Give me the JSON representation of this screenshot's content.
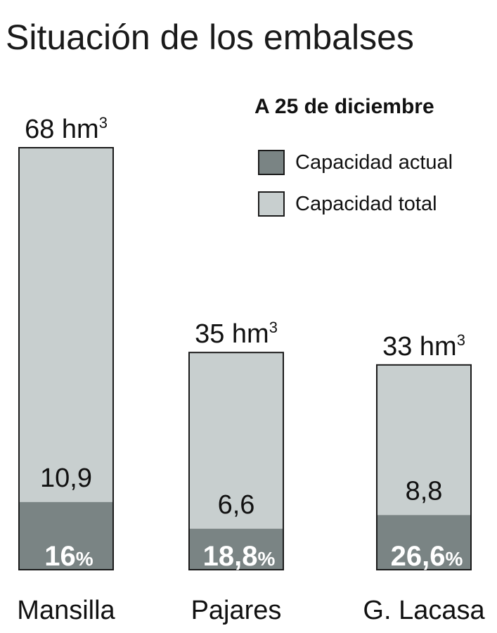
{
  "chart_data": {
    "type": "bar",
    "title": "Situación de los embalses",
    "subtitle": "A 25 de diciembre",
    "unit": "hm",
    "unit_exponent": "3",
    "categories": [
      "Mansilla",
      "Pajares",
      "G. Lacasa"
    ],
    "totals": [
      68,
      35,
      33
    ],
    "current": [
      10.9,
      6.6,
      8.8
    ],
    "current_labels": [
      "10,9",
      "6,6",
      "8,8"
    ],
    "percent_labels": [
      "16",
      "18,8",
      "26,6"
    ],
    "percent_sign": "%",
    "series": [
      {
        "name": "Capacidad actual",
        "values": [
          10.9,
          6.6,
          8.8
        ],
        "color": "#7a8484"
      },
      {
        "name": "Capacidad total",
        "values": [
          68,
          35,
          33
        ],
        "color": "#c8cfcf"
      }
    ],
    "legend": [
      {
        "label": "Capacidad actual",
        "color": "#7a8484"
      },
      {
        "label": "Capacidad total",
        "color": "#c8cfcf"
      }
    ],
    "legend_position": "top-right",
    "grid": false
  }
}
